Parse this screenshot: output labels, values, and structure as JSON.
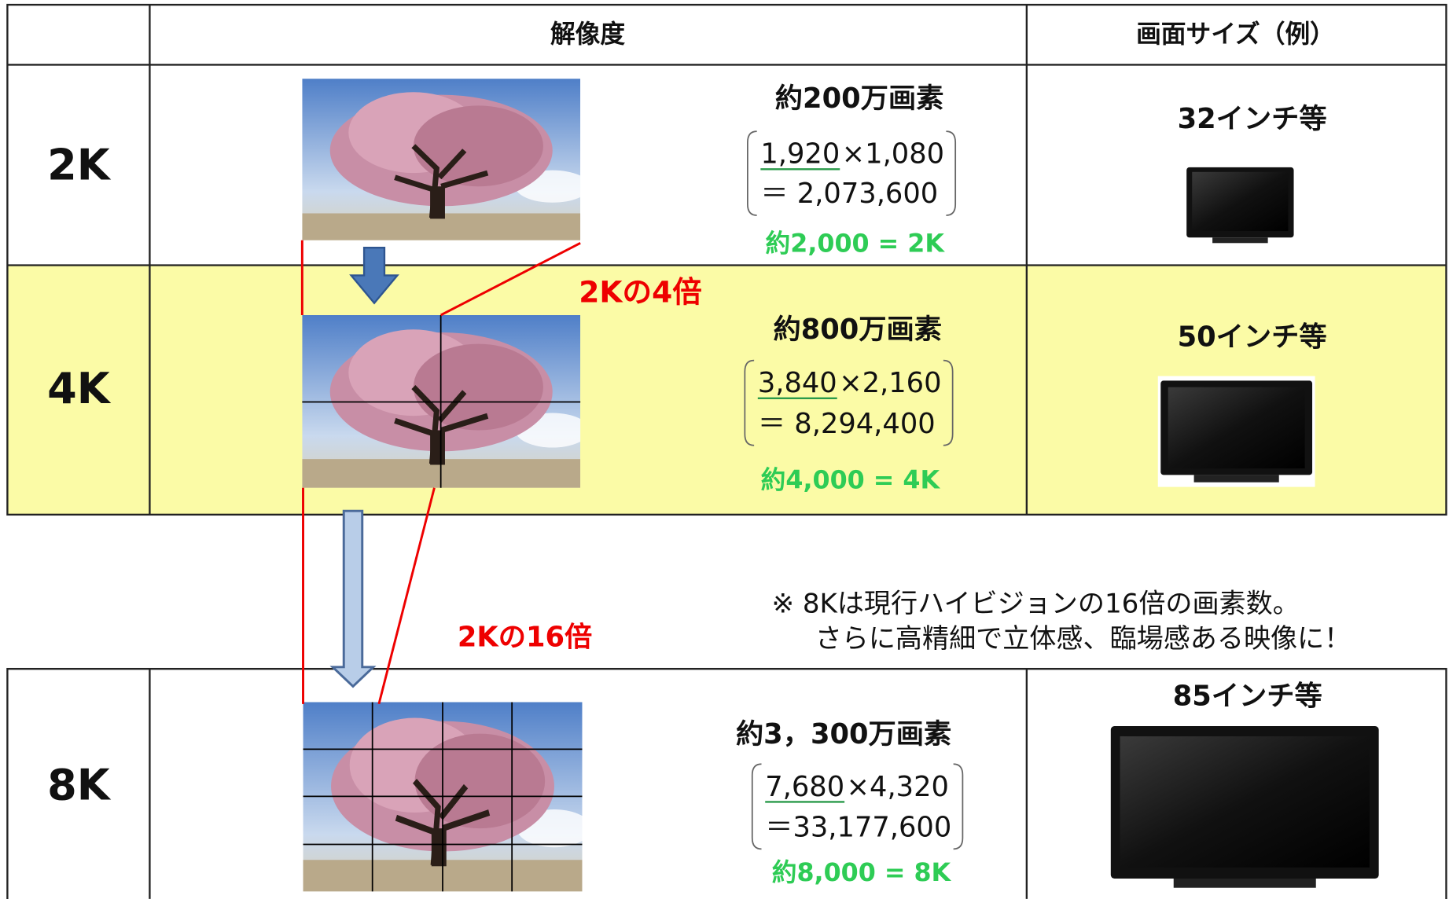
{
  "header": {
    "resolution": "解像度",
    "screen_size": "画面サイズ（例）"
  },
  "rows": [
    {
      "label": "2K",
      "pixels": "約200万画素",
      "width": "1,920",
      "height": "×1,080",
      "total": "＝ 2,073,600",
      "approx": "約2,000 = 2K",
      "size": "32インチ等"
    },
    {
      "label": "4K",
      "pixels": "約800万画素",
      "width": "3,840",
      "height": "×2,160",
      "total": "＝ 8,294,400",
      "approx": "約4,000 = 4K",
      "size": "50インチ等"
    },
    {
      "label": "8K",
      "pixels": "約3，300万画素",
      "width": "7,680",
      "height": "×4,320",
      "total": "＝33,177,600",
      "approx": "約8,000 = 8K",
      "size": "85インチ等"
    }
  ],
  "annotations": {
    "four_times": "2Kの4倍",
    "sixteen_times": "2Kの16倍"
  },
  "note": [
    "※ 8Kは現行ハイビジョンの16倍の画素数。",
    "さらに高精細で立体感、臨場感ある映像に！"
  ]
}
